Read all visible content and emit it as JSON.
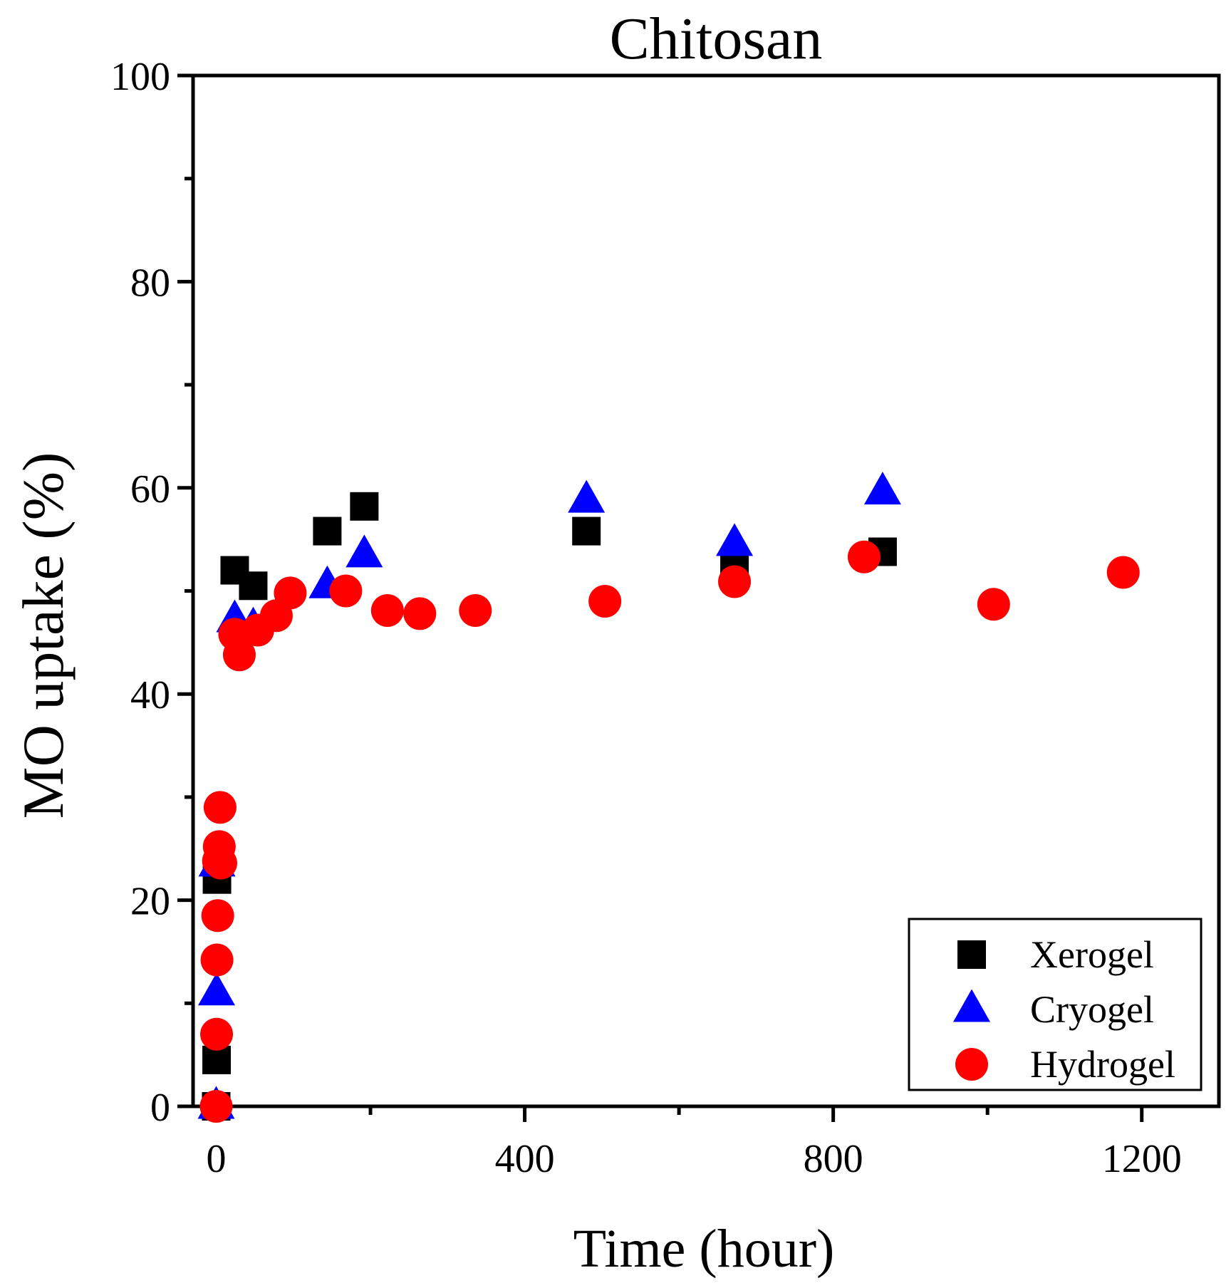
{
  "chart_data": {
    "type": "scatter",
    "title": "Chitosan",
    "xlabel": "Time (hour)",
    "ylabel": "MO uptake (%)",
    "xlim": [
      -30,
      1300
    ],
    "ylim": [
      0,
      100
    ],
    "x_ticks": [
      0,
      400,
      800,
      1200
    ],
    "y_ticks": [
      0,
      20,
      40,
      60,
      80,
      100
    ],
    "x_minor_ticks": [
      200,
      600,
      1000
    ],
    "y_minor_ticks": [
      10,
      30,
      50,
      70,
      90
    ],
    "grid": false,
    "legend_position": "bottom-right",
    "series": [
      {
        "name": "Xerogel",
        "marker": "square",
        "color": "#000000",
        "x": [
          0,
          0.5,
          1,
          24,
          48,
          144,
          192,
          480,
          672,
          864
        ],
        "y": [
          0,
          4.5,
          22,
          52,
          50.5,
          55.8,
          58.2,
          55.8,
          52.5,
          53.8
        ]
      },
      {
        "name": "Cryogel",
        "marker": "triangle",
        "color": "#0000ff",
        "x": [
          0,
          0.5,
          1,
          24,
          48,
          144,
          192,
          480,
          672,
          864
        ],
        "y": [
          0,
          11,
          23.5,
          47.2,
          46.5,
          50.5,
          53.5,
          58.8,
          54.6,
          59.6
        ]
      },
      {
        "name": "Hydrogel",
        "marker": "circle",
        "color": "#ff0000",
        "x": [
          0,
          0.5,
          1,
          2,
          3,
          4,
          5,
          6,
          24,
          30,
          54,
          78,
          96,
          168,
          222,
          264,
          336,
          504,
          672,
          840,
          1008,
          1176
        ],
        "y": [
          0,
          7,
          14.2,
          18.5,
          23.8,
          25.2,
          29,
          23.6,
          45.8,
          43.8,
          46.2,
          47.6,
          49.8,
          50,
          48.1,
          47.8,
          48.1,
          49,
          50.9,
          53.3,
          48.7,
          51.8
        ]
      }
    ]
  }
}
